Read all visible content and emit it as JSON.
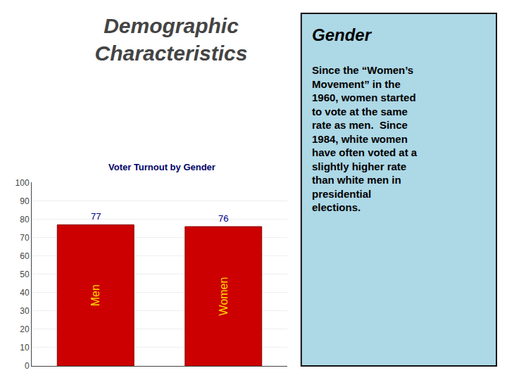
{
  "chart_data": {
    "type": "bar",
    "title": "Demographic\nCharacteristics",
    "annotations": [
      "Voter Turnout by Gender",
      "Gender",
      "Since the “Women’s\nMovement” in the\n1960, women started\nto vote at the same\nrate as men.  Since\n1984, white women\nhave often voted at a\nslightly higher rate\nthan white men in\npresidential\nelections."
    ],
    "categories": [
      "Men",
      "Women"
    ],
    "values": [
      77,
      76
    ],
    "color": "#CC0000",
    "ylim": [
      0,
      100
    ],
    "yticks": [
      0,
      10,
      20,
      30,
      40,
      50,
      60,
      70,
      80,
      90,
      100
    ],
    "grid": true,
    "data_labels": true,
    "tick_labels": "y"
  }
}
